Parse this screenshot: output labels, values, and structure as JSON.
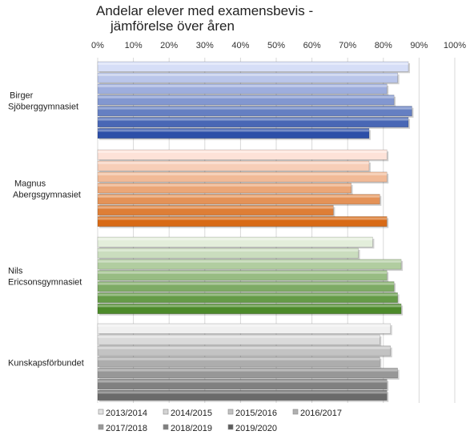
{
  "chart_data": {
    "type": "bar",
    "orientation": "horizontal",
    "title": [
      "Andelar elever med examensbevis -",
      "jämförelse över åren"
    ],
    "xlim": [
      0,
      100
    ],
    "x_ticks": [
      "0%",
      "10%",
      "20%",
      "30%",
      "40%",
      "50%",
      "60%",
      "70%",
      "80%",
      "90%",
      "100%"
    ],
    "grid": "vertical",
    "legend_position": "bottom",
    "categories": [
      {
        "label": [
          "Birger",
          "Sjöberggymnasiet"
        ],
        "color_light": "#d6def7",
        "color_dark": "#2d4fa8",
        "values": [
          87,
          84,
          81,
          83,
          88,
          87,
          76
        ]
      },
      {
        "label": [
          "Magnus",
          "Abergsgymnasiet"
        ],
        "color_light": "#fde2d8",
        "color_dark": "#d86a16",
        "values": [
          81,
          76,
          81,
          71,
          79,
          66,
          81
        ]
      },
      {
        "label": [
          "Nils",
          "Ericsonsgymnasiet"
        ],
        "color_light": "#e3eedb",
        "color_dark": "#4c8a2a",
        "values": [
          77,
          73,
          85,
          81,
          83,
          84,
          85
        ]
      },
      {
        "label": [
          "Kunskapsförbundet"
        ],
        "color_light": "#f0f0f0",
        "color_dark": "#6a6a6a",
        "values": [
          82,
          79,
          82,
          79,
          84,
          81,
          81
        ]
      }
    ],
    "series": [
      {
        "name": "2013/2014"
      },
      {
        "name": "2014/2015"
      },
      {
        "name": "2015/2016"
      },
      {
        "name": "2016/2017"
      },
      {
        "name": "2017/2018"
      },
      {
        "name": "2018/2019"
      },
      {
        "name": "2019/2020"
      }
    ],
    "legend_swatch_colors": [
      "#e2e2e2",
      "#d4d4d4",
      "#c2c2c2",
      "#b0b0b0",
      "#9a9a9a",
      "#7f7f7f",
      "#5e5e5e"
    ]
  }
}
